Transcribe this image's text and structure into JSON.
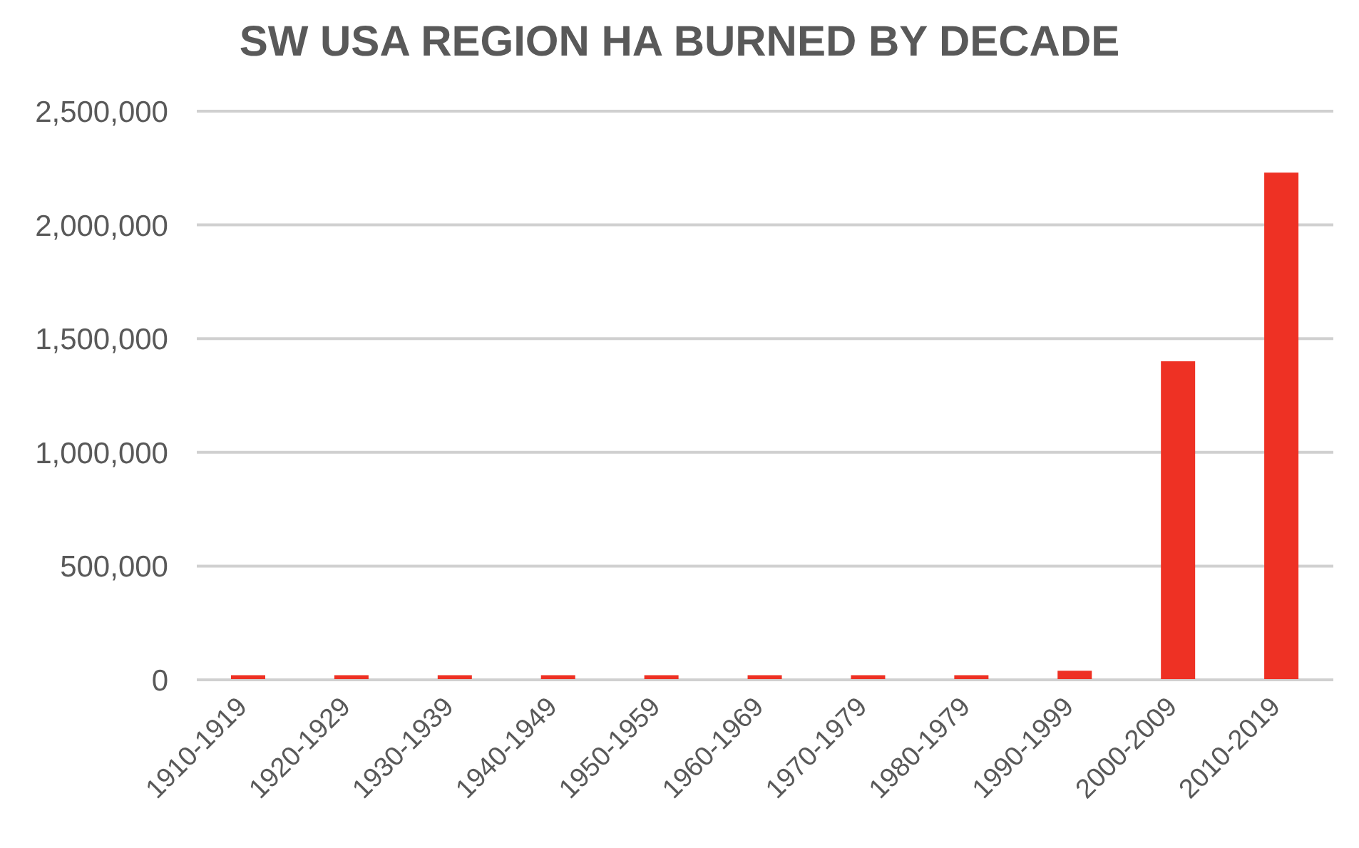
{
  "chart_data": {
    "type": "bar",
    "title": "SW USA REGION HA BURNED BY DECADE",
    "categories": [
      "1910-1919",
      "1920-1929",
      "1930-1939",
      "1940-1949",
      "1950-1959",
      "1960-1969",
      "1970-1979",
      "1980-1979",
      "1990-1999",
      "2000-2009",
      "2010-2019"
    ],
    "values": [
      20000,
      20000,
      20000,
      20000,
      20000,
      20000,
      20000,
      20000,
      40000,
      1400000,
      2230000
    ],
    "color": "#ee3124",
    "ylim": [
      0,
      2500000
    ],
    "yticks": [
      0,
      {
        "value": 500000,
        "label": "500,000"
      },
      {
        "value": 1000000,
        "label": "1,000,000"
      },
      {
        "value": 1500000,
        "label": "1,500,000"
      },
      {
        "value": 2000000,
        "label": "2,000,000"
      },
      {
        "value": 2500000,
        "label": "2,500,000"
      }
    ],
    "grid": "y"
  }
}
